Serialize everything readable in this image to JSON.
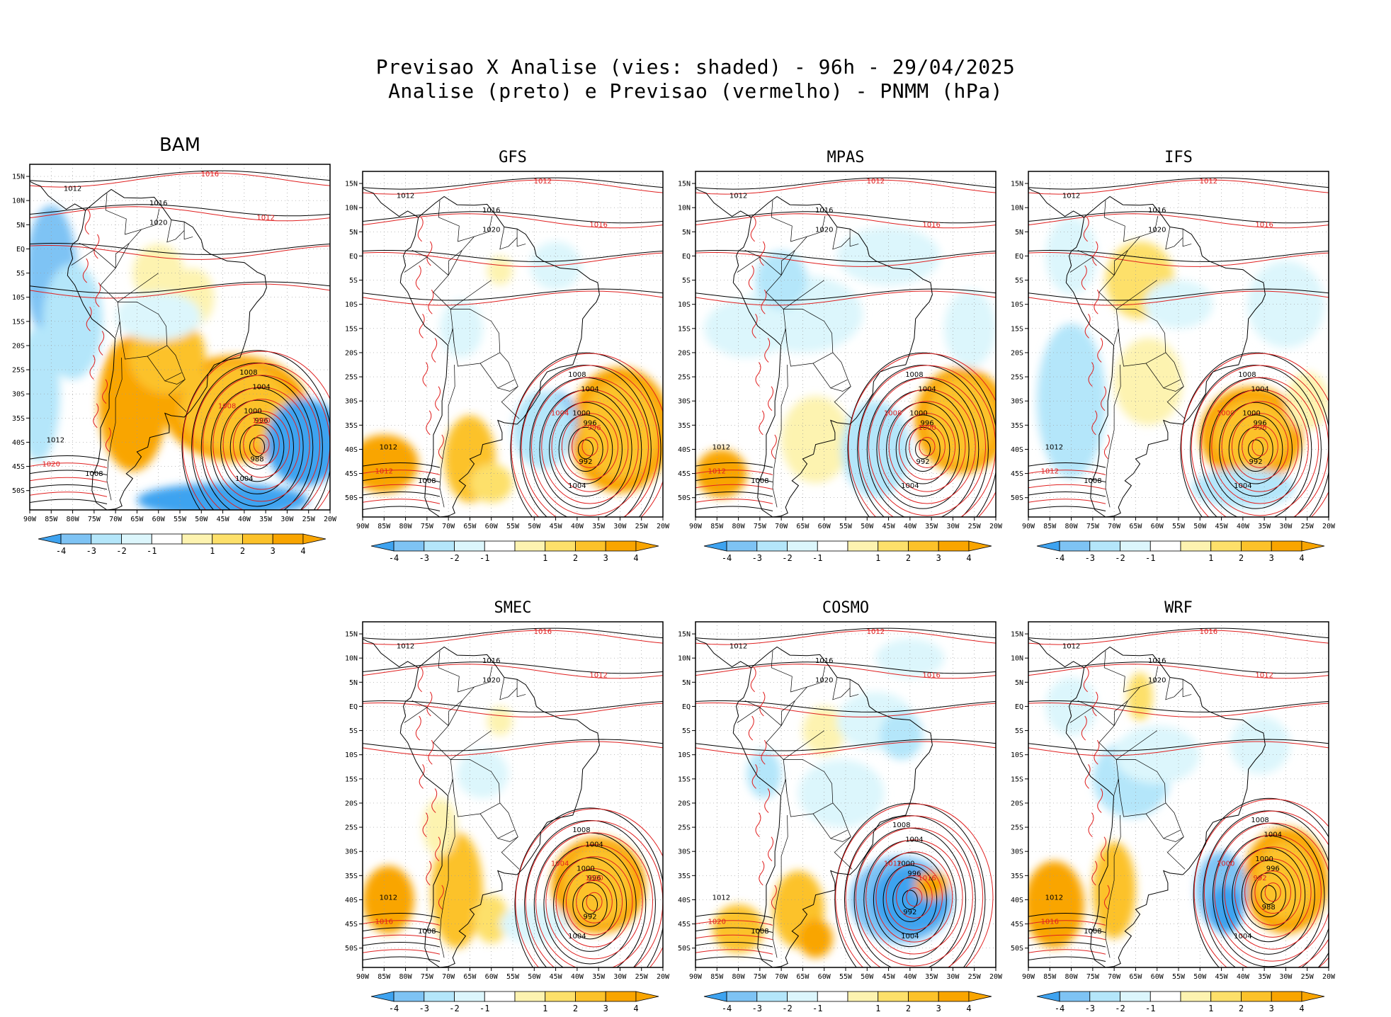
{
  "title": {
    "line1": "Previsao X Analise (vies: shaded) - 96h - 29/04/2025",
    "line2": "Analise (preto) e Previsao (vermelho) - PNMM (hPa)"
  },
  "colors": {
    "analysis_contour": "#000000",
    "forecast_contour": "#e02020",
    "bias_neg4": "#3ea3f0",
    "bias_neg3": "#7ec3f4",
    "bias_neg2": "#b4e6fa",
    "bias_neg1": "#dcf6fc",
    "bias_zero": "#ffffff",
    "bias_pos1": "#fdf3b0",
    "bias_pos2": "#fde06a",
    "bias_pos3": "#fcc22a",
    "bias_pos4": "#f9a500"
  },
  "axes": {
    "lat_labels": [
      "15N",
      "10N",
      "5N",
      "EQ",
      "5S",
      "10S",
      "15S",
      "20S",
      "25S",
      "30S",
      "35S",
      "40S",
      "45S",
      "50S"
    ],
    "lon_labels": [
      "90W",
      "85W",
      "80W",
      "75W",
      "70W",
      "65W",
      "60W",
      "55W",
      "50W",
      "45W",
      "40W",
      "35W",
      "30W",
      "25W",
      "20W"
    ]
  },
  "colorbar": {
    "labels": [
      "-4",
      "-3",
      "-2",
      "-1",
      "1",
      "2",
      "3",
      "4"
    ]
  },
  "panels": [
    {
      "name": "BAM",
      "low_center": "988",
      "low_isobars": [
        "1008",
        "1004",
        "1000",
        "996"
      ],
      "sample_labels": [
        "1012",
        "1016",
        "1020",
        "1012",
        "1008",
        "1004"
      ],
      "forecast_labels": [
        "1016",
        "1012",
        "1020",
        "1008",
        "1000"
      ]
    },
    {
      "name": "GFS",
      "low_center": "992",
      "low_isobars": [
        "1008",
        "1004",
        "1000",
        "996"
      ],
      "sample_labels": [
        "1012",
        "1016",
        "1020",
        "1012",
        "1008",
        "1004"
      ],
      "forecast_labels": [
        "1012",
        "1016",
        "1012",
        "1004",
        "996"
      ]
    },
    {
      "name": "MPAS",
      "low_center": "992",
      "low_isobars": [
        "1008",
        "1004",
        "1000",
        "996"
      ],
      "sample_labels": [
        "1012",
        "1016",
        "1020",
        "1012",
        "1008",
        "1004"
      ],
      "forecast_labels": [
        "1012",
        "1016",
        "1012",
        "1008",
        "1000"
      ]
    },
    {
      "name": "IFS",
      "low_center": "992",
      "low_isobars": [
        "1008",
        "1004",
        "1000",
        "996"
      ],
      "sample_labels": [
        "1012",
        "1016",
        "1020",
        "1012",
        "1008",
        "1004"
      ],
      "forecast_labels": [
        "1012",
        "1016",
        "1012",
        "1000",
        "996"
      ]
    },
    {
      "name": "SMEC",
      "low_center": "992",
      "low_isobars": [
        "1008",
        "1004",
        "1000",
        "996"
      ],
      "sample_labels": [
        "1012",
        "1016",
        "1020",
        "1012",
        "1008",
        "1004"
      ],
      "forecast_labels": [
        "1016",
        "1012",
        "1016",
        "1004",
        "1000"
      ]
    },
    {
      "name": "COSMO",
      "low_center": "992",
      "low_isobars": [
        "1008",
        "1004",
        "1000",
        "996"
      ],
      "sample_labels": [
        "1012",
        "1016",
        "1020",
        "1012",
        "1008",
        "1004"
      ],
      "forecast_labels": [
        "1012",
        "1016",
        "1020",
        "1012",
        "1016"
      ]
    },
    {
      "name": "WRF",
      "low_center": "988",
      "low_isobars": [
        "1008",
        "1004",
        "1000",
        "996"
      ],
      "sample_labels": [
        "1012",
        "1016",
        "1020",
        "1012",
        "1008",
        "1004"
      ],
      "forecast_labels": [
        "1016",
        "1012",
        "1016",
        "1000",
        "992"
      ]
    }
  ]
}
